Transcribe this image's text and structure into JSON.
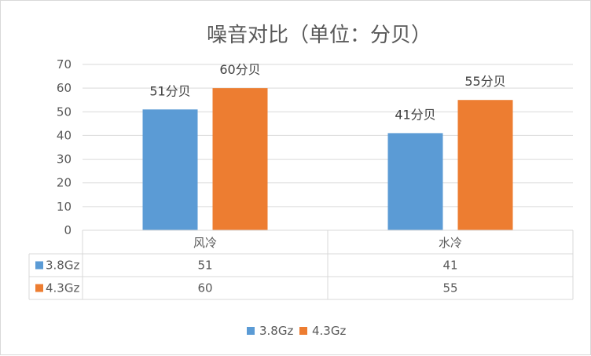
{
  "chart_data": {
    "type": "bar",
    "title": "噪音对比（单位：分贝）",
    "categories": [
      "风冷",
      "水冷"
    ],
    "series": [
      {
        "name": "3.8Gz",
        "values": [
          51,
          41
        ],
        "labels": [
          "51分贝",
          "41分贝"
        ],
        "color": "#5b9bd5"
      },
      {
        "name": "4.3Gz",
        "values": [
          60,
          55
        ],
        "labels": [
          "60分贝",
          "55分贝"
        ],
        "color": "#ed7d31"
      }
    ],
    "ylim": [
      0,
      70
    ],
    "yticks": [
      "0",
      "10",
      "20",
      "30",
      "40",
      "50",
      "60",
      "70"
    ],
    "grid": true,
    "data_table": true,
    "legend": "bottom"
  }
}
